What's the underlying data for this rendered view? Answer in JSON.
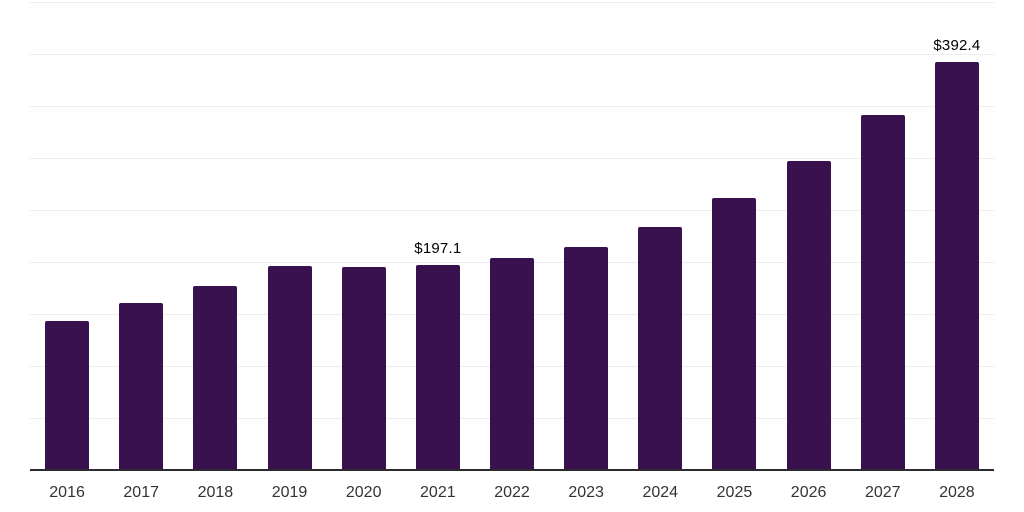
{
  "chart_data": {
    "type": "bar",
    "title": "",
    "xlabel": "",
    "ylabel": "",
    "categories": [
      "2016",
      "2017",
      "2018",
      "2019",
      "2020",
      "2021",
      "2022",
      "2023",
      "2024",
      "2025",
      "2026",
      "2027",
      "2028"
    ],
    "values": [
      143.2,
      160.5,
      176.9,
      196.2,
      195.5,
      197.1,
      203.8,
      214.6,
      233.6,
      261.5,
      297.0,
      341.3,
      392.4
    ],
    "ylim": [
      0,
      450
    ],
    "grid": true,
    "grid_step": 50,
    "legend": "none",
    "data_labels": [
      {
        "category": "2021",
        "text": "$197.1"
      },
      {
        "category": "2028",
        "text": "$392.4"
      }
    ],
    "colors": {
      "bar": "#38114E",
      "grid": "#ededed",
      "axis": "#2b2b2b",
      "tick_label": "#333333",
      "data_label": "#000000",
      "background": "#ffffff"
    }
  }
}
